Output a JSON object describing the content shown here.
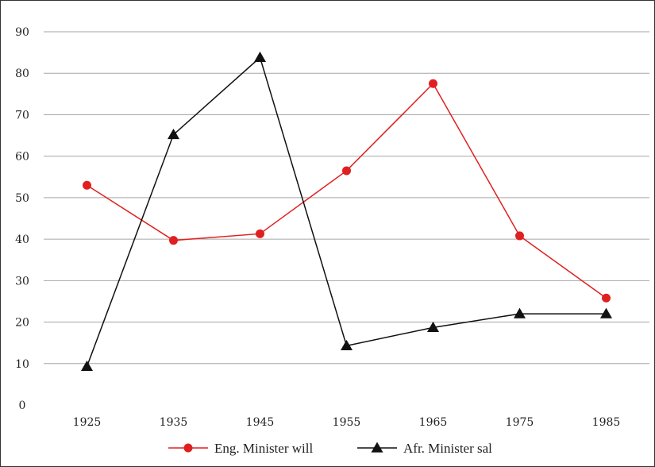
{
  "chart_data": {
    "type": "line",
    "title": "",
    "xlabel": "",
    "ylabel": "",
    "categories": [
      "1925",
      "1935",
      "1945",
      "1955",
      "1965",
      "1975",
      "1985"
    ],
    "ylim": [
      0,
      90
    ],
    "yticks": [
      "0",
      "10",
      "20",
      "30",
      "40",
      "50",
      "60",
      "70",
      "80",
      "90"
    ],
    "grid": "horizontal",
    "legend_position": "bottom",
    "series": [
      {
        "name": "Eng. Minister will",
        "values": [
          53,
          39.7,
          41.3,
          56.5,
          77.5,
          40.8,
          25.8
        ],
        "color": "#e02020",
        "marker": "circle"
      },
      {
        "name": "Afr. Minister sal",
        "values": [
          9.3,
          65.2,
          83.8,
          14.3,
          18.7,
          22,
          22
        ],
        "color": "#111111",
        "marker": "triangle"
      }
    ]
  }
}
